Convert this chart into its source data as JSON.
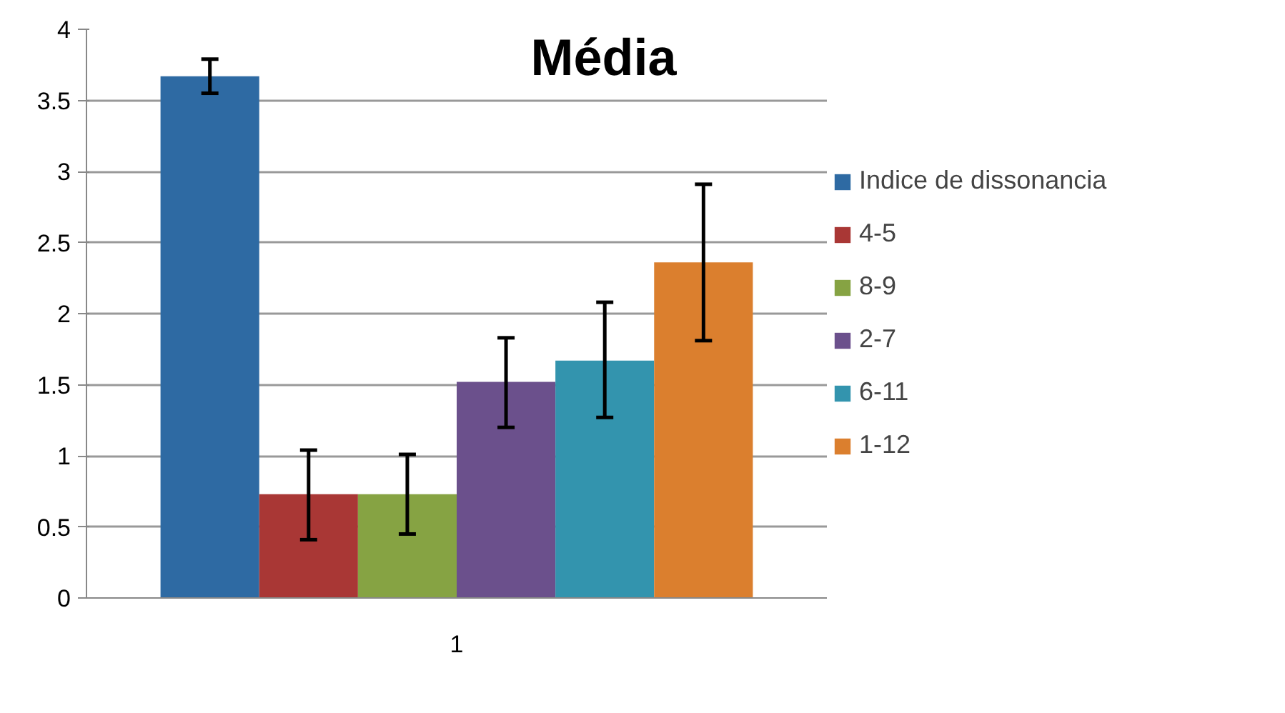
{
  "chart_data": {
    "type": "bar",
    "title": "Média",
    "categories": [
      "1"
    ],
    "series": [
      {
        "name": "Indice de dissonancia",
        "color": "#2e6aa3",
        "values": [
          3.67
        ],
        "errors": [
          [
            3.55,
            3.79
          ]
        ]
      },
      {
        "name": "4-5",
        "color": "#a93735",
        "values": [
          0.73
        ],
        "errors": [
          [
            0.41,
            1.04
          ]
        ]
      },
      {
        "name": "8-9",
        "color": "#86a343",
        "values": [
          0.73
        ],
        "errors": [
          [
            0.45,
            1.01
          ]
        ]
      },
      {
        "name": "2-7",
        "color": "#6b508c",
        "values": [
          1.52
        ],
        "errors": [
          [
            1.2,
            1.83
          ]
        ]
      },
      {
        "name": "6-11",
        "color": "#3394ae",
        "values": [
          1.67
        ],
        "errors": [
          [
            1.27,
            2.08
          ]
        ]
      },
      {
        "name": "1-12",
        "color": "#db7f2e",
        "values": [
          2.36
        ],
        "errors": [
          [
            1.81,
            2.91
          ]
        ]
      }
    ],
    "ylim": [
      0,
      4
    ],
    "yticks": [
      0,
      0.5,
      1,
      1.5,
      2,
      2.5,
      3,
      3.5,
      4
    ],
    "grid": "y",
    "legend": "right"
  }
}
